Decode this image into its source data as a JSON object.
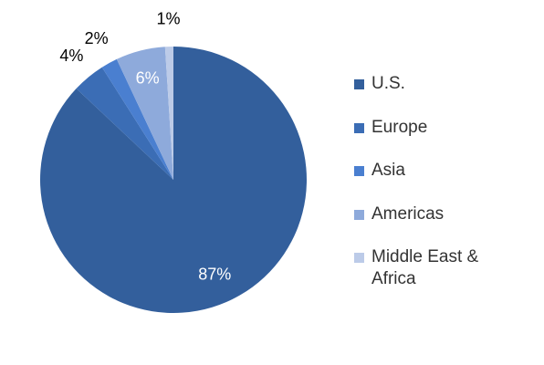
{
  "chart_data": {
    "type": "pie",
    "categories": [
      "U.S.",
      "Europe",
      "Asia",
      "Americas",
      "Middle East & Africa"
    ],
    "values": [
      87,
      4,
      2,
      6,
      1
    ],
    "value_labels": [
      "87%",
      "4%",
      "2%",
      "6%",
      "1%"
    ],
    "colors": [
      "#335f9c",
      "#3b6db5",
      "#4a7fd0",
      "#8eaadb",
      "#bccbe8"
    ],
    "legend": "right"
  }
}
